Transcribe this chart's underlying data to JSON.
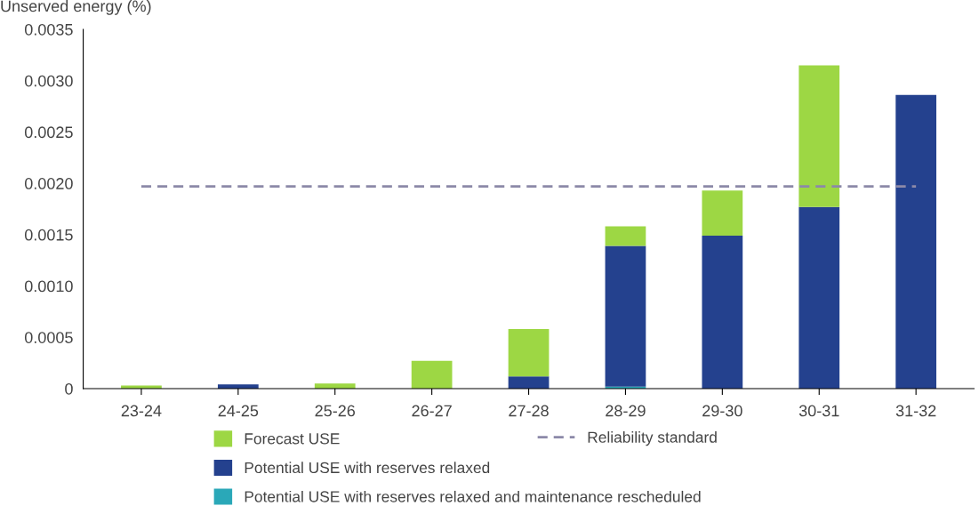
{
  "chart_data": {
    "type": "bar",
    "stacked": true,
    "ylabel": "Unserved energy (%)",
    "categories": [
      "23-24",
      "24-25",
      "25-26",
      "26-27",
      "27-28",
      "28-29",
      "29-30",
      "30-31",
      "31-32"
    ],
    "series": [
      {
        "name": "Potential USE with reserves relaxed and maintenance rescheduled",
        "color": "#2aa8b8",
        "values": [
          0,
          0,
          0,
          0,
          0,
          2e-05,
          0,
          0,
          0
        ]
      },
      {
        "name": "Potential USE with reserves relaxed",
        "color": "#24418e",
        "values": [
          0,
          4e-05,
          0,
          0,
          0.00012,
          0.00137,
          0.00149,
          0.00177,
          0.00286
        ]
      },
      {
        "name": "Forecast USE",
        "color": "#9dd744",
        "values": [
          3e-05,
          0,
          5e-05,
          0.00027,
          0.00046,
          0.00019,
          0.00044,
          0.00138,
          0
        ]
      }
    ],
    "ref_lines": [
      {
        "axis": "y",
        "value": 0.00197,
        "label": "Reliability standard",
        "color": "#8c89a8",
        "line_style": "dashed"
      }
    ],
    "ylim": [
      0,
      0.0035
    ],
    "yticks": [
      0,
      0.0005,
      {
        "value": 0.001,
        "label": "0.0010"
      },
      0.0015,
      {
        "value": 0.002,
        "label": "0.0020"
      },
      0.0025,
      {
        "value": 0.003,
        "label": "0.0030"
      },
      0.0035
    ],
    "grid": false,
    "legend": "bottom"
  }
}
